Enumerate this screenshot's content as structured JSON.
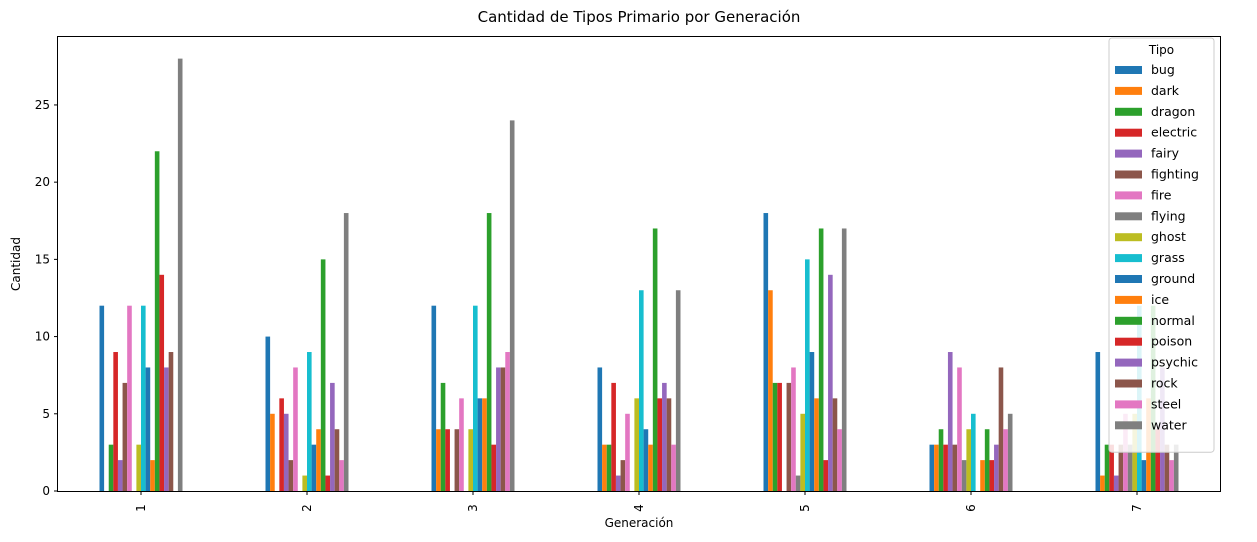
{
  "chart_data": {
    "type": "bar",
    "title": "Cantidad de Tipos Primario por Generación",
    "xlabel": "Generación",
    "ylabel": "Cantidad",
    "categories": [
      "1",
      "2",
      "3",
      "4",
      "5",
      "6",
      "7"
    ],
    "ylim": [
      0,
      29.4
    ],
    "yticks": [
      "0",
      "5",
      "10",
      "15",
      "20",
      "25"
    ],
    "grid": false,
    "legend": {
      "title": "Tipo",
      "placement": "upper-right"
    },
    "series": [
      {
        "name": "bug",
        "color": "#1f77b4",
        "values": [
          12,
          10,
          12,
          8,
          18,
          3,
          9
        ]
      },
      {
        "name": "dark",
        "color": "#ff7f0e",
        "values": [
          0,
          5,
          4,
          3,
          13,
          3,
          1
        ]
      },
      {
        "name": "dragon",
        "color": "#2ca02c",
        "values": [
          3,
          0,
          7,
          3,
          7,
          4,
          3
        ]
      },
      {
        "name": "electric",
        "color": "#d62728",
        "values": [
          9,
          6,
          4,
          7,
          7,
          3,
          3
        ]
      },
      {
        "name": "fairy",
        "color": "#9467bd",
        "values": [
          2,
          5,
          0,
          1,
          0,
          9,
          1
        ]
      },
      {
        "name": "fighting",
        "color": "#8c564b",
        "values": [
          7,
          2,
          4,
          2,
          7,
          3,
          3
        ]
      },
      {
        "name": "fire",
        "color": "#e377c2",
        "values": [
          12,
          8,
          6,
          5,
          8,
          8,
          5
        ]
      },
      {
        "name": "flying",
        "color": "#7f7f7f",
        "values": [
          0,
          0,
          0,
          0,
          1,
          2,
          3
        ]
      },
      {
        "name": "ghost",
        "color": "#bcbd22",
        "values": [
          3,
          1,
          4,
          6,
          5,
          4,
          5
        ]
      },
      {
        "name": "grass",
        "color": "#17becf",
        "values": [
          12,
          9,
          12,
          13,
          15,
          5,
          12
        ]
      },
      {
        "name": "ground",
        "color": "#1f77b4",
        "values": [
          8,
          3,
          6,
          4,
          9,
          0,
          2
        ]
      },
      {
        "name": "ice",
        "color": "#ff7f0e",
        "values": [
          2,
          4,
          6,
          3,
          6,
          2,
          6
        ]
      },
      {
        "name": "normal",
        "color": "#2ca02c",
        "values": [
          22,
          15,
          18,
          17,
          17,
          4,
          12
        ]
      },
      {
        "name": "poison",
        "color": "#d62728",
        "values": [
          14,
          1,
          3,
          6,
          2,
          2,
          4
        ]
      },
      {
        "name": "psychic",
        "color": "#9467bd",
        "values": [
          8,
          7,
          8,
          7,
          14,
          3,
          8
        ]
      },
      {
        "name": "rock",
        "color": "#8c564b",
        "values": [
          9,
          4,
          8,
          6,
          6,
          8,
          3
        ]
      },
      {
        "name": "steel",
        "color": "#e377c2",
        "values": [
          0,
          2,
          9,
          3,
          4,
          4,
          2
        ]
      },
      {
        "name": "water",
        "color": "#7f7f7f",
        "values": [
          28,
          18,
          24,
          13,
          17,
          5,
          3
        ]
      }
    ]
  }
}
